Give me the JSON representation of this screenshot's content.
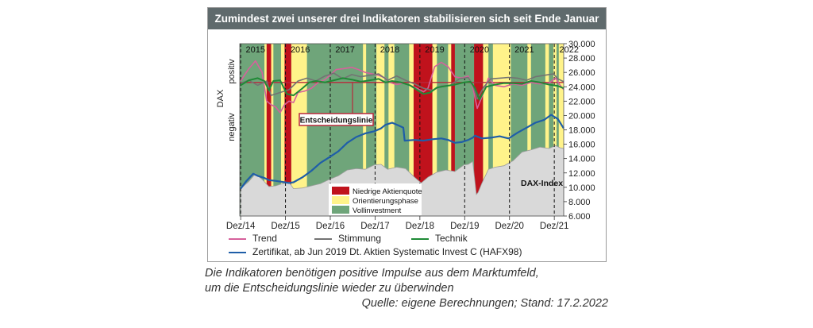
{
  "title": "Zumindest zwei unserer drei Indikatoren stabilisieren sich seit Ende Januar",
  "caption_line1": "Die Indikatoren benötigen positive Impulse aus dem Marktumfeld,",
  "caption_line2": "um die Entscheidungslinie wieder zu überwinden",
  "source": "Quelle: eigene Berechnungen; Stand: 17.2.2022",
  "colors": {
    "title_bg": "#5f6a6c",
    "green_phase": "#6fa57a",
    "yellow_phase": "#fff38a",
    "red_phase": "#c0121c",
    "trend": "#d6619c",
    "stimmung": "#737373",
    "technik": "#1f8a36",
    "zertifikat": "#1f5ea8",
    "dax_area": "#d9d9d9",
    "decision_line": "#b8283b"
  },
  "chart_data": {
    "type": "line",
    "title": "Zumindest zwei unserer drei Indikatoren stabilisieren sich seit Ende Januar",
    "x_tick_labels": [
      "Dez/14",
      "Dez/15",
      "Dez/16",
      "Dez/17",
      "Dez/18",
      "Dez/19",
      "Dez/20",
      "Dez/21"
    ],
    "year_labels": [
      "2015",
      "2016",
      "2017",
      "2018",
      "2019",
      "2020",
      "2021",
      "2022"
    ],
    "y_tick_labels": [
      "30.000",
      "28.000",
      "26.000",
      "24.000",
      "22.000",
      "20.000",
      "18.000",
      "16.000",
      "14.000",
      "12.000",
      "10.000",
      "8.000",
      "6.000"
    ],
    "ylim": [
      6000,
      30000
    ],
    "xlim": [
      2014.9,
      2022.13
    ],
    "left_axis_label": "DAX",
    "left_axis_positive": "positiv",
    "left_axis_negative": "negativ",
    "decision_line_label": "Entscheidungslinie",
    "dax_index_label": "DAX-Index",
    "phase_legend": [
      {
        "name": "Niedrige Aktienquote",
        "color": "#c0121c"
      },
      {
        "name": "Orientierungsphase",
        "color": "#fff38a"
      },
      {
        "name": "Vollinvestment",
        "color": "#6fa57a"
      }
    ],
    "phases": [
      {
        "type": "yellow",
        "from": 2015.45,
        "to": 2015.5
      },
      {
        "type": "red",
        "from": 2015.5,
        "to": 2015.6
      },
      {
        "type": "yellow",
        "from": 2015.6,
        "to": 2015.65
      },
      {
        "type": "yellow",
        "from": 2015.82,
        "to": 2015.9
      },
      {
        "type": "red",
        "from": 2015.9,
        "to": 2016.05
      },
      {
        "type": "yellow",
        "from": 2016.05,
        "to": 2016.4
      },
      {
        "type": "yellow",
        "from": 2017.65,
        "to": 2017.72
      },
      {
        "type": "yellow",
        "from": 2017.95,
        "to": 2018.13
      },
      {
        "type": "yellow",
        "from": 2018.22,
        "to": 2018.35
      },
      {
        "type": "yellow",
        "from": 2018.68,
        "to": 2018.78
      },
      {
        "type": "red",
        "from": 2018.78,
        "to": 2019.2
      },
      {
        "type": "yellow",
        "from": 2019.2,
        "to": 2019.3
      },
      {
        "type": "yellow",
        "from": 2019.55,
        "to": 2019.62
      },
      {
        "type": "red",
        "from": 2019.62,
        "to": 2019.7
      },
      {
        "type": "red",
        "from": 2020.13,
        "to": 2020.33
      },
      {
        "type": "yellow",
        "from": 2020.33,
        "to": 2020.45
      },
      {
        "type": "yellow",
        "from": 2020.55,
        "to": 2020.95
      },
      {
        "type": "yellow",
        "from": 2021.32,
        "to": 2021.4
      },
      {
        "type": "yellow",
        "from": 2021.72,
        "to": 2021.8
      },
      {
        "type": "yellow",
        "from": 2021.9,
        "to": 2021.97
      },
      {
        "type": "yellow",
        "from": 2022.02,
        "to": 2022.13
      }
    ],
    "decision_level": 24600,
    "series": [
      {
        "name": "Trend",
        "x": [
          2014.92,
          2015.1,
          2015.25,
          2015.4,
          2015.5,
          2015.6,
          2015.7,
          2015.8,
          2015.9,
          2016.0,
          2016.1,
          2016.2,
          2016.35,
          2016.5,
          2016.65,
          2016.8,
          2016.95,
          2017.05,
          2017.2,
          2017.4,
          2017.55,
          2017.7,
          2017.85,
          2018.0,
          2018.15,
          2018.25,
          2018.4,
          2018.55,
          2018.7,
          2018.85,
          2019.0,
          2019.1,
          2019.25,
          2019.4,
          2019.55,
          2019.7,
          2019.85,
          2020.0,
          2020.1,
          2020.2,
          2020.3,
          2020.45,
          2020.6,
          2020.8,
          2021.0,
          2021.2,
          2021.4,
          2021.6,
          2021.8,
          2021.95,
          2022.05,
          2022.13
        ],
        "y": [
          24800,
          26500,
          27600,
          26000,
          22000,
          21500,
          21200,
          20400,
          21500,
          22000,
          21800,
          23200,
          23400,
          23800,
          24600,
          25000,
          25800,
          26400,
          26500,
          26700,
          26400,
          26000,
          25800,
          25600,
          25200,
          24600,
          24300,
          24500,
          24200,
          23800,
          23300,
          23800,
          26800,
          27400,
          26800,
          25400,
          25200,
          25500,
          24000,
          21000,
          22500,
          25200,
          24200,
          24000,
          24400,
          24200,
          24600,
          24400,
          24500,
          25200,
          24200,
          23600
        ]
      },
      {
        "name": "Stimmung",
        "x": [
          2014.92,
          2015.1,
          2015.3,
          2015.5,
          2015.6,
          2015.8,
          2016.0,
          2016.2,
          2016.4,
          2016.6,
          2016.8,
          2017.0,
          2017.2,
          2017.4,
          2017.6,
          2017.8,
          2018.0,
          2018.2,
          2018.4,
          2018.6,
          2018.8,
          2019.0,
          2019.2,
          2019.4,
          2019.6,
          2019.8,
          2020.0,
          2020.1,
          2020.2,
          2020.35,
          2020.5,
          2020.7,
          2020.9,
          2021.1,
          2021.3,
          2021.5,
          2021.7,
          2021.9,
          2022.0,
          2022.13
        ],
        "y": [
          24500,
          24900,
          24200,
          24800,
          22800,
          23200,
          23600,
          24800,
          25200,
          24800,
          25500,
          25900,
          25100,
          25700,
          25400,
          25600,
          25800,
          24900,
          25500,
          24900,
          24400,
          23800,
          23500,
          24100,
          24200,
          25100,
          25300,
          24300,
          22300,
          24000,
          25100,
          25200,
          25300,
          25200,
          24900,
          25400,
          25600,
          25800,
          25100,
          24700
        ]
      },
      {
        "name": "Technik",
        "x": [
          2014.92,
          2015.1,
          2015.3,
          2015.45,
          2015.55,
          2015.65,
          2015.8,
          2015.95,
          2016.1,
          2016.3,
          2016.45,
          2016.6,
          2016.8,
          2017.0,
          2017.2,
          2017.4,
          2017.6,
          2017.8,
          2018.0,
          2018.15,
          2018.3,
          2018.5,
          2018.7,
          2018.85,
          2019.0,
          2019.15,
          2019.3,
          2019.5,
          2019.7,
          2019.9,
          2020.05,
          2020.15,
          2020.25,
          2020.4,
          2020.6,
          2020.8,
          2021.0,
          2021.2,
          2021.4,
          2021.6,
          2021.8,
          2022.0,
          2022.13
        ],
        "y": [
          24200,
          24900,
          25200,
          24800,
          23500,
          24800,
          24900,
          23000,
          22800,
          23800,
          24600,
          24800,
          24600,
          24900,
          25200,
          25000,
          24700,
          24900,
          25100,
          24600,
          24800,
          24600,
          24200,
          23600,
          23000,
          23200,
          23900,
          24100,
          24300,
          24600,
          24700,
          23800,
          22200,
          24000,
          24300,
          24500,
          24500,
          24400,
          24800,
          24600,
          24300,
          24100,
          23800
        ]
      },
      {
        "name": "Zertifikat, ab Jun 2019 Dt. Aktien Systematic Invest C (HAFX98)",
        "x": [
          2014.92,
          2015.05,
          2015.2,
          2015.3,
          2015.45,
          2015.55,
          2015.7,
          2015.9,
          2016.0,
          2016.1,
          2016.3,
          2016.5,
          2016.7,
          2016.9,
          2017.1,
          2017.3,
          2017.5,
          2017.7,
          2017.9,
          2018.05,
          2018.15,
          2018.3,
          2018.45,
          2018.55,
          2018.58,
          2018.8,
          2019.0,
          2019.2,
          2019.4,
          2019.55,
          2019.7,
          2019.85,
          2020.0,
          2020.1,
          2020.15,
          2020.3,
          2020.5,
          2020.7,
          2020.9,
          2021.1,
          2021.3,
          2021.5,
          2021.7,
          2021.85,
          2022.0,
          2022.13
        ],
        "y": [
          9800,
          10900,
          11900,
          11600,
          11300,
          11000,
          10900,
          10700,
          10600,
          10700,
          11400,
          12300,
          13400,
          14200,
          15000,
          16200,
          17000,
          17500,
          17800,
          18200,
          18700,
          19000,
          18600,
          18300,
          16500,
          16600,
          16500,
          16700,
          16800,
          16600,
          16200,
          16300,
          16600,
          16900,
          17200,
          16800,
          16900,
          17100,
          16800,
          17600,
          18300,
          19000,
          19400,
          20100,
          19500,
          18200
        ]
      },
      {
        "name": "DAX-Index",
        "x": [
          2014.92,
          2015.1,
          2015.25,
          2015.4,
          2015.55,
          2015.7,
          2015.85,
          2016.0,
          2016.1,
          2016.3,
          2016.5,
          2016.7,
          2016.9,
          2017.1,
          2017.3,
          2017.5,
          2017.7,
          2017.9,
          2018.05,
          2018.2,
          2018.4,
          2018.6,
          2018.8,
          2018.95,
          2019.1,
          2019.3,
          2019.5,
          2019.7,
          2019.9,
          2020.0,
          2020.1,
          2020.18,
          2020.22,
          2020.3,
          2020.45,
          2020.6,
          2020.8,
          2021.0,
          2021.2,
          2021.4,
          2021.6,
          2021.8,
          2021.95,
          2022.05,
          2022.13
        ],
        "y": [
          9800,
          10800,
          11900,
          11100,
          10100,
          10200,
          10500,
          10700,
          9800,
          9900,
          10200,
          10500,
          11100,
          11600,
          12400,
          12600,
          12500,
          13100,
          13200,
          12500,
          12800,
          12600,
          11400,
          10600,
          11400,
          12100,
          12400,
          12200,
          13100,
          13200,
          13600,
          9000,
          9300,
          10500,
          12500,
          12800,
          13000,
          13700,
          14900,
          15200,
          15600,
          15400,
          15800,
          15500,
          15400
        ]
      }
    ]
  }
}
